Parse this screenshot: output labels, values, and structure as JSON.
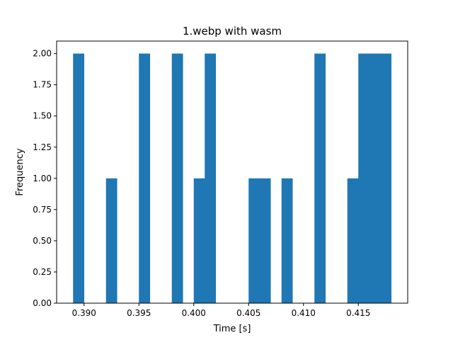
{
  "chart_data": {
    "type": "bar",
    "title": "1.webp with wasm",
    "xlabel": "Time [s]",
    "ylabel": "Frequency",
    "bin_edges": [
      0.389,
      0.39,
      0.391,
      0.392,
      0.393,
      0.394,
      0.395,
      0.396,
      0.397,
      0.398,
      0.399,
      0.4,
      0.401,
      0.402,
      0.403,
      0.404,
      0.405,
      0.406,
      0.407,
      0.408,
      0.409,
      0.41,
      0.411,
      0.412,
      0.413,
      0.414,
      0.415,
      0.416,
      0.417,
      0.418
    ],
    "values": [
      2,
      0,
      0,
      1,
      0,
      0,
      2,
      0,
      0,
      2,
      0,
      1,
      2,
      0,
      0,
      0,
      1,
      1,
      0,
      1,
      0,
      0,
      2,
      0,
      0,
      1,
      2,
      2,
      2
    ],
    "xlim": [
      0.3875,
      0.4195
    ],
    "ylim": [
      0,
      2.1
    ],
    "x_ticks": [
      0.39,
      0.395,
      0.4,
      0.405,
      0.41,
      0.415
    ],
    "x_tick_labels": [
      "0.390",
      "0.395",
      "0.400",
      "0.405",
      "0.410",
      "0.415"
    ],
    "y_ticks": [
      0.0,
      0.25,
      0.5,
      0.75,
      1.0,
      1.25,
      1.5,
      1.75,
      2.0
    ],
    "y_tick_labels": [
      "0.00",
      "0.25",
      "0.50",
      "0.75",
      "1.00",
      "1.25",
      "1.50",
      "1.75",
      "2.00"
    ],
    "grid": false,
    "bar_color": "#1f77b4"
  }
}
